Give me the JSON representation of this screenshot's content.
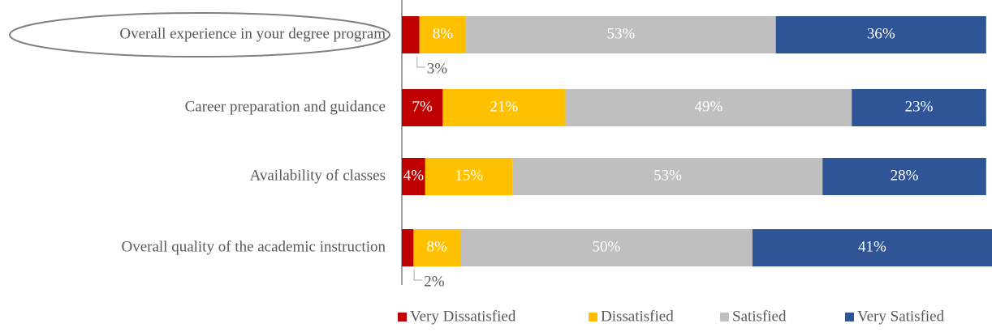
{
  "chart_data": {
    "type": "stacked-bar-horizontal",
    "categories": [
      "Overall experience in your degree program",
      "Career preparation and guidance",
      "Availability of classes",
      "Overall quality of the academic instruction"
    ],
    "series": [
      {
        "name": "Very Dissatisfied",
        "color": "#c00000",
        "values": [
          3,
          7,
          4,
          2
        ],
        "value_labels": [
          "3%",
          "7%",
          "4%",
          "2%"
        ]
      },
      {
        "name": "Dissatisfied",
        "color": "#ffc000",
        "values": [
          8,
          21,
          15,
          8
        ],
        "value_labels": [
          "8%",
          "21%",
          "15%",
          "8%"
        ]
      },
      {
        "name": "Satisfied",
        "color": "#bfbfbf",
        "values": [
          53,
          49,
          53,
          50
        ],
        "value_labels": [
          "53%",
          "49%",
          "53%",
          "50%"
        ]
      },
      {
        "name": "Very Satisfied",
        "color": "#2f5597",
        "values": [
          36,
          23,
          28,
          41
        ],
        "value_labels": [
          "36%",
          "23%",
          "28%",
          "41%"
        ]
      }
    ],
    "legend": "bottom"
  }
}
